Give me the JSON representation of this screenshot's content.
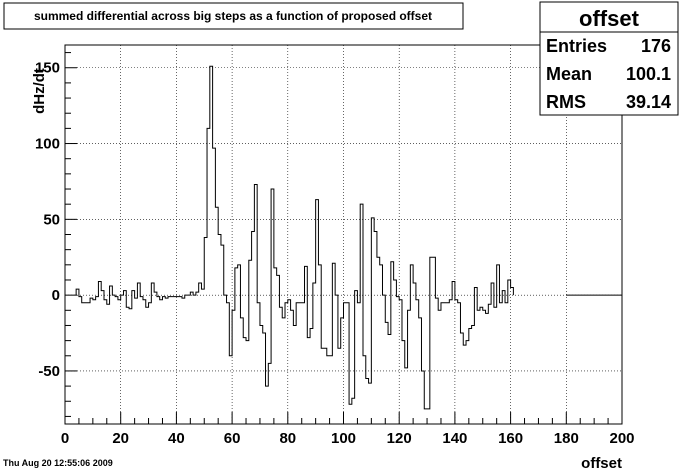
{
  "chart_data": {
    "type": "histogram",
    "title": "summed differential across big steps as a function of proposed offset",
    "xlabel": "offset",
    "ylabel": "dHz/dt",
    "xlim": [
      0,
      200
    ],
    "ylim": [
      -85,
      165
    ],
    "x_ticks": [
      0,
      20,
      40,
      60,
      80,
      100,
      120,
      140,
      160,
      180,
      200
    ],
    "y_ticks": [
      -50,
      0,
      50,
      100,
      150
    ],
    "grid": true,
    "bin_width": 1,
    "bin_start": 4,
    "values": [
      4,
      -1,
      -5,
      -5,
      -5,
      -2,
      -3,
      -1,
      9,
      3,
      -3,
      -6,
      6,
      0,
      -1,
      -3,
      0,
      3,
      -8,
      -9,
      3,
      -2,
      8,
      -1,
      -3,
      -8,
      -5,
      8,
      2,
      -1,
      -3,
      -1,
      -2,
      -1,
      -1,
      -1,
      -1,
      -1,
      -2,
      0,
      0,
      2,
      0,
      2,
      8,
      4,
      38,
      110,
      151,
      97,
      58,
      40,
      33,
      0,
      -5,
      -40,
      -10,
      18,
      20,
      -15,
      -28,
      -30,
      23,
      42,
      73,
      -5,
      -20,
      -25,
      -60,
      -45,
      70,
      18,
      13,
      -8,
      -15,
      -5,
      -3,
      -10,
      -20,
      -5,
      -5,
      -5,
      19,
      -28,
      -22,
      8,
      63,
      20,
      -35,
      -35,
      -40,
      -40,
      21,
      0,
      -35,
      -15,
      -5,
      -5,
      -72,
      -68,
      3,
      -5,
      60,
      -40,
      -55,
      -58,
      51,
      42,
      25,
      20,
      0,
      -18,
      -26,
      22,
      10,
      -1,
      -3,
      -30,
      -48,
      -10,
      20,
      8,
      -3,
      -15,
      -50,
      -75,
      -75,
      25,
      25,
      -2,
      -10,
      -5,
      -5,
      -5,
      -3,
      9,
      -3,
      -5,
      -25,
      -33,
      -30,
      -22,
      -20,
      5,
      -10,
      -8,
      -10,
      -12,
      -6,
      8,
      -8,
      20,
      -5,
      3,
      -5,
      10,
      5
    ],
    "flat_tail": {
      "from": 180,
      "to": 200,
      "value": 0
    },
    "stats": {
      "name": "offset",
      "rows": [
        {
          "label": "Entries",
          "value": "176"
        },
        {
          "label": "Mean",
          "value": "100.1"
        },
        {
          "label": "RMS",
          "value": "39.14"
        }
      ]
    },
    "timestamp": "Thu Aug 20 12:55:06 2009"
  }
}
